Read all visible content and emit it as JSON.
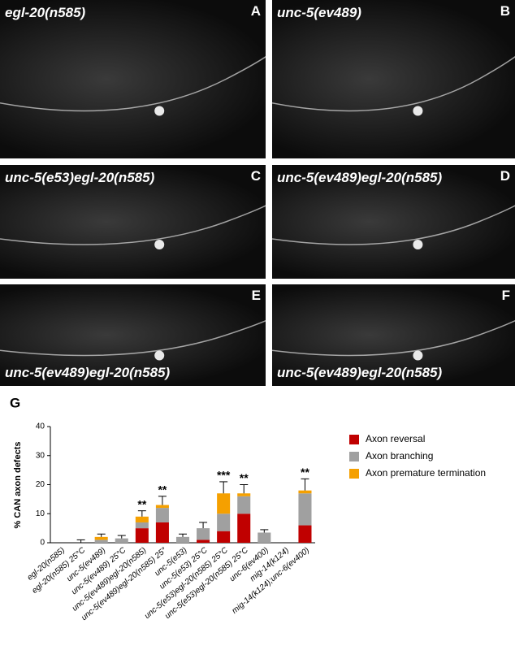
{
  "panels": [
    {
      "letter": "A",
      "label": "egl-20(n585)"
    },
    {
      "letter": "B",
      "label": "unc-5(ev489)"
    },
    {
      "letter": "C",
      "label": "unc-5(e53)egl-20(n585)"
    },
    {
      "letter": "D",
      "label": "unc-5(ev489)egl-20(n585)"
    },
    {
      "letter": "E",
      "label": "unc-5(ev489)egl-20(n585)"
    },
    {
      "letter": "F",
      "label": "unc-5(ev489)egl-20(n585)"
    }
  ],
  "figure_label": "G",
  "chart_data": {
    "type": "bar",
    "stacked": true,
    "ylabel": "% CAN axon defects",
    "categories": [
      "egl-20(n585)",
      "egl-20(n585) 25°C",
      "unc-5(ev489)",
      "unc-5(ev489) 25°C",
      "unc-5(ev489)egl-20(n585)",
      "unc-5(ev489)egl-20(n585) 25°",
      "unc-5(e53)",
      "unc-5(e53) 25°C",
      "unc-5(e53)egl-20(n585) 25°C",
      "unc-5(e53)egl-20(n585) 25°C",
      "unc-6(ev400)",
      "mig-14(k124)",
      "mig-14(k124);unc-6(ev400)"
    ],
    "series": [
      {
        "name": "Axon reversal",
        "color": "#c00000",
        "values": [
          0,
          0,
          0,
          0,
          5,
          7,
          0,
          1,
          4,
          10,
          0,
          0,
          6
        ]
      },
      {
        "name": "Axon branching",
        "color": "#a0a0a0",
        "values": [
          0,
          0,
          1,
          1.5,
          2,
          5,
          2,
          4,
          6,
          6,
          3.5,
          0,
          11
        ]
      },
      {
        "name": "Axon premature termination",
        "color": "#f5a000",
        "values": [
          0,
          0,
          1,
          0,
          2,
          1,
          0,
          0,
          7,
          1,
          0,
          0,
          1
        ]
      }
    ],
    "errors": [
      0,
      1,
      1,
      1,
      2,
      3,
      1,
      2,
      4,
      3,
      1,
      0,
      4
    ],
    "annotations": [
      null,
      null,
      null,
      null,
      "**",
      "**",
      null,
      null,
      "***",
      "**",
      null,
      null,
      "**"
    ],
    "ylim": [
      0,
      40
    ],
    "yticks": [
      0,
      10,
      20,
      30,
      40
    ],
    "legend": "right"
  }
}
